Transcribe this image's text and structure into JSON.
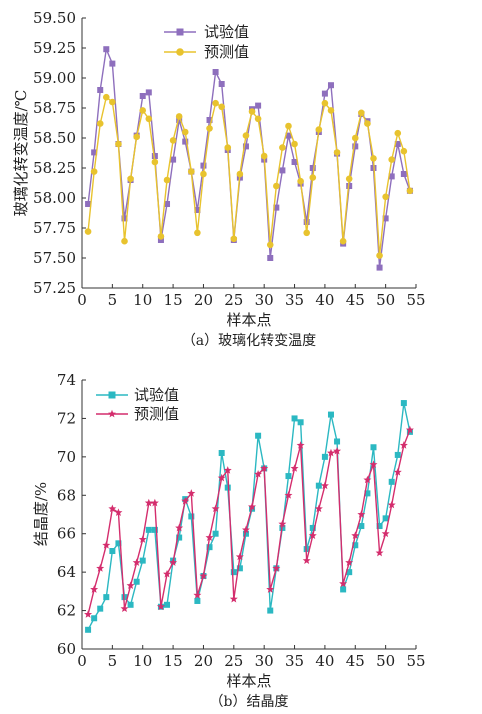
{
  "chart_data": [
    {
      "type": "line",
      "caption": "（a）玻璃化转变温度",
      "xlabel": "样本点",
      "ylabel": "玻璃化转变温度/℃",
      "xlim": [
        0,
        55
      ],
      "ylim": [
        57.25,
        59.5
      ],
      "x_ticks": [
        0,
        5,
        10,
        15,
        20,
        25,
        30,
        35,
        40,
        45,
        50,
        55
      ],
      "y_ticks": [
        57.25,
        57.5,
        57.75,
        58.0,
        58.25,
        58.5,
        58.75,
        59.0,
        59.25,
        59.5
      ],
      "y_tick_labels": [
        "57.25",
        "57.50",
        "57.75",
        "58.00",
        "58.25",
        "58.50",
        "58.75",
        "59.00",
        "59.25",
        "59.50"
      ],
      "legend_position": "top-center",
      "x": [
        1,
        2,
        3,
        4,
        5,
        6,
        7,
        8,
        9,
        10,
        11,
        12,
        13,
        14,
        15,
        16,
        17,
        18,
        19,
        20,
        21,
        22,
        23,
        24,
        25,
        26,
        27,
        28,
        29,
        30,
        31,
        32,
        33,
        34,
        35,
        36,
        37,
        38,
        39,
        40,
        41,
        42,
        43,
        44,
        45,
        46,
        47,
        48,
        49,
        50,
        51,
        52,
        53,
        54
      ],
      "series": [
        {
          "name": "试验值",
          "color": "#8e6fbd",
          "marker": "square",
          "values": [
            57.95,
            58.38,
            58.9,
            59.24,
            59.12,
            58.45,
            57.83,
            58.15,
            58.52,
            58.85,
            58.88,
            58.35,
            57.65,
            57.95,
            58.32,
            58.65,
            58.47,
            58.22,
            57.9,
            58.27,
            58.65,
            59.05,
            58.95,
            58.4,
            57.65,
            58.17,
            58.43,
            58.74,
            58.77,
            58.32,
            57.5,
            57.92,
            58.23,
            58.52,
            58.3,
            58.12,
            57.8,
            58.25,
            58.55,
            58.87,
            58.94,
            58.37,
            57.62,
            58.1,
            58.43,
            58.7,
            58.64,
            58.25,
            57.42,
            57.83,
            58.18,
            58.45,
            58.2,
            58.06
          ]
        },
        {
          "name": "预测值",
          "color": "#e8c32e",
          "marker": "circle",
          "values": [
            57.72,
            58.22,
            58.62,
            58.84,
            58.8,
            58.45,
            57.64,
            58.16,
            58.51,
            58.73,
            58.66,
            58.3,
            57.68,
            58.15,
            58.48,
            58.68,
            58.55,
            58.22,
            57.71,
            58.2,
            58.58,
            58.79,
            58.76,
            58.42,
            57.66,
            58.2,
            58.52,
            58.72,
            58.66,
            58.35,
            57.61,
            58.1,
            58.42,
            58.6,
            58.45,
            58.14,
            57.71,
            58.17,
            58.57,
            58.79,
            58.73,
            58.38,
            57.64,
            58.16,
            58.5,
            58.71,
            58.62,
            58.33,
            57.52,
            58.01,
            58.32,
            58.54,
            58.39,
            58.06
          ]
        }
      ]
    },
    {
      "type": "line",
      "caption": "（b）结晶度",
      "xlabel": "样本点",
      "ylabel": "结晶度/%",
      "xlim": [
        0,
        55
      ],
      "ylim": [
        60,
        74
      ],
      "x_ticks": [
        0,
        5,
        10,
        15,
        20,
        25,
        30,
        35,
        40,
        45,
        50,
        55
      ],
      "y_ticks": [
        60,
        62,
        64,
        66,
        68,
        70,
        72,
        74
      ],
      "y_tick_labels": [
        "60",
        "62",
        "64",
        "66",
        "68",
        "70",
        "72",
        "74"
      ],
      "legend_position": "top-left",
      "x": [
        1,
        2,
        3,
        4,
        5,
        6,
        7,
        8,
        9,
        10,
        11,
        12,
        13,
        14,
        15,
        16,
        17,
        18,
        19,
        20,
        21,
        22,
        23,
        24,
        25,
        26,
        27,
        28,
        29,
        30,
        31,
        32,
        33,
        34,
        35,
        36,
        37,
        38,
        39,
        40,
        41,
        42,
        43,
        44,
        45,
        46,
        47,
        48,
        49,
        50,
        51,
        52,
        53,
        54
      ],
      "series": [
        {
          "name": "试验值",
          "color": "#2bb8c2",
          "marker": "square",
          "values": [
            61.0,
            61.6,
            62.1,
            62.7,
            65.1,
            65.5,
            62.7,
            62.3,
            63.5,
            64.6,
            66.2,
            66.2,
            62.2,
            62.3,
            64.6,
            65.8,
            67.8,
            66.9,
            62.5,
            63.8,
            65.3,
            66.0,
            70.2,
            68.4,
            64.0,
            64.2,
            66.0,
            67.3,
            71.1,
            69.4,
            62.0,
            64.2,
            66.3,
            69.0,
            72.0,
            71.8,
            65.2,
            66.3,
            68.5,
            70.0,
            72.2,
            70.8,
            63.1,
            64.0,
            65.4,
            66.4,
            68.1,
            70.5,
            66.4,
            66.8,
            68.7,
            70.1,
            72.8,
            71.3
          ]
        },
        {
          "name": "预测值",
          "color": "#d42d6d",
          "marker": "star",
          "values": [
            61.8,
            63.1,
            64.2,
            65.4,
            67.3,
            67.1,
            62.1,
            63.3,
            64.5,
            65.7,
            67.6,
            67.6,
            62.2,
            63.9,
            64.5,
            66.3,
            67.7,
            68.1,
            62.8,
            63.8,
            65.8,
            67.3,
            68.9,
            69.3,
            62.6,
            64.8,
            66.2,
            67.4,
            69.1,
            69.4,
            63.1,
            64.2,
            66.5,
            68.0,
            69.4,
            70.6,
            64.6,
            65.9,
            67.3,
            68.5,
            70.2,
            70.3,
            63.4,
            64.5,
            65.9,
            67.0,
            68.8,
            69.6,
            65.0,
            66.0,
            67.5,
            69.2,
            70.6,
            71.4
          ]
        }
      ]
    }
  ]
}
